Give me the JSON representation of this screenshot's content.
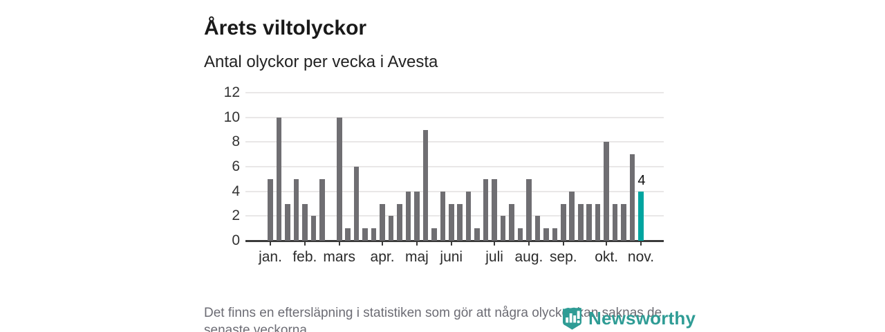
{
  "header": {
    "title": "Årets viltolyckor",
    "subtitle": "Antal olyckor per vecka i Avesta"
  },
  "chart_data": {
    "type": "bar",
    "title": "Årets viltolyckor",
    "subtitle": "Antal olyckor per vecka i Avesta",
    "x_unit": "vecka",
    "values": [
      5,
      10,
      3,
      5,
      3,
      2,
      5,
      0,
      10,
      1,
      6,
      1,
      1,
      3,
      2,
      3,
      4,
      4,
      9,
      1,
      4,
      3,
      3,
      4,
      1,
      5,
      5,
      2,
      3,
      1,
      5,
      2,
      1,
      1,
      3,
      4,
      3,
      3,
      3,
      8,
      3,
      3,
      7,
      4
    ],
    "ylim": [
      0,
      12
    ],
    "yticks": [
      0,
      2,
      4,
      6,
      8,
      10,
      12
    ],
    "month_ticks": [
      {
        "label": "jan.",
        "index": 0
      },
      {
        "label": "feb.",
        "index": 4
      },
      {
        "label": "mars",
        "index": 8
      },
      {
        "label": "apr.",
        "index": 13
      },
      {
        "label": "maj",
        "index": 17
      },
      {
        "label": "juni",
        "index": 21
      },
      {
        "label": "juli",
        "index": 26
      },
      {
        "label": "aug.",
        "index": 30
      },
      {
        "label": "sep.",
        "index": 34
      },
      {
        "label": "okt.",
        "index": 39
      },
      {
        "label": "nov.",
        "index": 43
      }
    ],
    "highlight": {
      "index": 43,
      "label": "4",
      "color": "#00a5a0"
    },
    "bar_color": "#6f6e72",
    "grid": true,
    "legend": null
  },
  "footer": {
    "note_lines": [
      "Det finns en eftersläpning i statistiken som gör att några olyckor kan saknas de",
      "senaste veckorna."
    ]
  },
  "logo": {
    "text": "Newsworthy",
    "icon": "newsworthy-shield-barchart-icon",
    "color": "#2f9c95"
  }
}
